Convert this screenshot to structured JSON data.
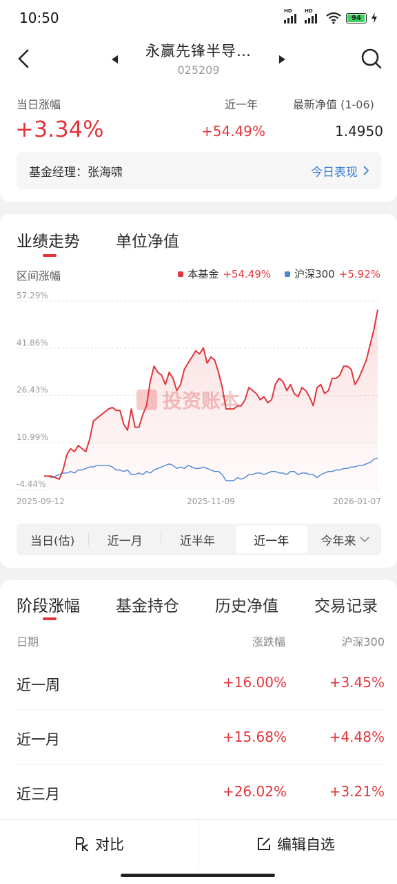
{
  "status": {
    "time": "10:50",
    "battery": "94",
    "net1": "HD",
    "net2": "HD"
  },
  "header": {
    "fund_name": "永赢先锋半导…",
    "fund_code": "025209"
  },
  "summary": {
    "daily_label": "当日涨幅",
    "daily_value": "+3.34%",
    "year_label": "近一年",
    "year_value": "+54.49%",
    "nav_label": "最新净值 (1-06)",
    "nav_value": "1.4950",
    "manager_text": "基金经理：张海啸",
    "manager_link": "今日表现"
  },
  "chart_section": {
    "tabs": [
      "业绩走势",
      "单位净值"
    ],
    "subtitle": "区间涨幅",
    "watermark": "投资账本",
    "ranges": [
      "当日(估)",
      "近一月",
      "近半年",
      "近一年",
      "今年来"
    ],
    "active_range": 3,
    "colors": {
      "fund": "#e0353b",
      "index": "#4a86d8"
    }
  },
  "chart_data": {
    "type": "line",
    "y_ticks": [
      "57.29%",
      "41.86%",
      "26.43%",
      "10.99%",
      "-4.44%"
    ],
    "x_ticks": [
      "2025-09-12",
      "2025-11-09",
      "2026-01-07"
    ],
    "ylim": [
      -4.44,
      57.29
    ],
    "series": [
      {
        "name": "本基金",
        "legend_value": "+54.49%",
        "values": [
          0,
          0,
          0,
          -0.5,
          -1,
          2,
          7,
          9,
          8,
          10,
          9,
          8,
          12,
          18,
          19,
          20,
          21,
          22,
          22.5,
          21.5,
          21.5,
          17,
          15,
          22,
          16,
          16,
          20,
          23,
          31,
          36,
          34,
          33,
          30,
          34,
          32,
          28,
          30,
          35,
          37,
          39,
          41,
          40,
          42,
          37,
          39,
          38,
          34,
          29,
          22,
          22,
          22,
          23,
          23,
          25,
          29,
          28,
          27,
          25,
          26,
          24,
          25,
          30,
          32,
          31,
          28,
          30,
          27,
          26,
          29,
          28,
          26,
          23,
          29,
          30,
          27,
          28,
          32,
          32,
          33,
          36,
          36,
          35,
          30,
          32,
          35,
          38,
          43,
          48,
          54.5
        ]
      },
      {
        "name": "沪深300",
        "legend_value": "+5.92%",
        "values": [
          0,
          0,
          -0.5,
          0,
          0.5,
          1,
          1,
          1.5,
          1,
          2,
          2,
          2.5,
          3,
          3,
          3.5,
          3.5,
          3.5,
          3.5,
          3,
          2,
          2,
          1.5,
          2,
          0.5,
          0.5,
          1,
          0.5,
          1.5,
          1,
          2,
          2.5,
          3,
          3.5,
          4,
          3.5,
          2.5,
          3,
          2.5,
          3.5,
          3,
          2.5,
          2.5,
          3,
          2.5,
          2,
          1.5,
          1.5,
          0.5,
          -1.5,
          -1.5,
          -1.5,
          -0.5,
          -1,
          -0.5,
          0.5,
          0.5,
          1,
          1,
          0.5,
          1,
          1.5,
          1.5,
          1,
          1,
          0.5,
          1.5,
          1.5,
          0.5,
          1,
          1,
          0.5,
          0.5,
          -0.5,
          0.5,
          1,
          1.5,
          1.5,
          2,
          2,
          2.5,
          2.5,
          3,
          3,
          3.5,
          3.5,
          4,
          4.5,
          5.5,
          5.92
        ]
      }
    ]
  },
  "stage_section": {
    "tabs": [
      "阶段涨幅",
      "基金持仓",
      "历史净值",
      "交易记录"
    ],
    "columns": [
      "日期",
      "涨跌幅",
      "沪深300"
    ],
    "rows": [
      {
        "period": "近一周",
        "change": "+16.00%",
        "index": "+3.45%"
      },
      {
        "period": "近一月",
        "change": "+15.68%",
        "index": "+4.48%"
      },
      {
        "period": "近三月",
        "change": "+26.02%",
        "index": "+3.21%"
      }
    ]
  },
  "bottom": {
    "compare": "对比",
    "edit": "编辑自选"
  }
}
